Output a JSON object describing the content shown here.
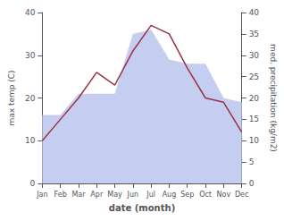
{
  "chart_data": {
    "type": "line",
    "categories": [
      "Jan",
      "Feb",
      "Mar",
      "Apr",
      "May",
      "Jun",
      "Jul",
      "Aug",
      "Sep",
      "Oct",
      "Nov",
      "Dec"
    ],
    "series": [
      {
        "type": "area",
        "color": "#c5cdf0",
        "values": [
          16,
          16,
          21,
          21,
          21,
          35,
          36,
          29,
          28,
          28,
          20,
          19
        ],
        "axis": "y2"
      },
      {
        "type": "line",
        "color": "#993344",
        "values": [
          10,
          15,
          20,
          26,
          23,
          31,
          37,
          35,
          27,
          20,
          19,
          12
        ]
      }
    ],
    "xlabel": "date (month)",
    "ylabel": "max temp (C)",
    "y2label": "med. precipitation (kg/m2)",
    "ylim": [
      0,
      40
    ],
    "yticks": [
      0,
      10,
      20,
      30,
      40
    ],
    "y2lim": [
      0,
      40
    ],
    "y2ticks": [
      0,
      5,
      10,
      15,
      20,
      25,
      30,
      35,
      40
    ],
    "grid": false
  }
}
